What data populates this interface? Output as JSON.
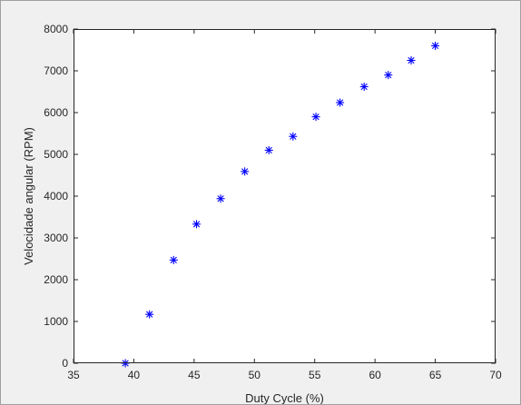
{
  "chart_data": {
    "type": "scatter",
    "title": "",
    "xlabel": "Duty Cycle (%)",
    "ylabel": "Velocidade angular (RPM)",
    "xlim": [
      35,
      70
    ],
    "ylim": [
      0,
      8000
    ],
    "xticks": [
      35,
      40,
      45,
      50,
      55,
      60,
      65,
      70
    ],
    "yticks": [
      0,
      1000,
      2000,
      3000,
      4000,
      5000,
      6000,
      7000,
      8000
    ],
    "grid": false,
    "marker": "*",
    "marker_color": "#0000ff",
    "series": [
      {
        "x": [
          39.3,
          41.3,
          43.3,
          45.2,
          47.2,
          49.2,
          51.2,
          53.2,
          55.1,
          57.1,
          59.1,
          61.1,
          63.0,
          65.0
        ],
        "y": [
          0,
          1170,
          2470,
          3330,
          3940,
          4590,
          5100,
          5430,
          5900,
          6240,
          6620,
          6900,
          7250,
          7600
        ]
      }
    ]
  }
}
